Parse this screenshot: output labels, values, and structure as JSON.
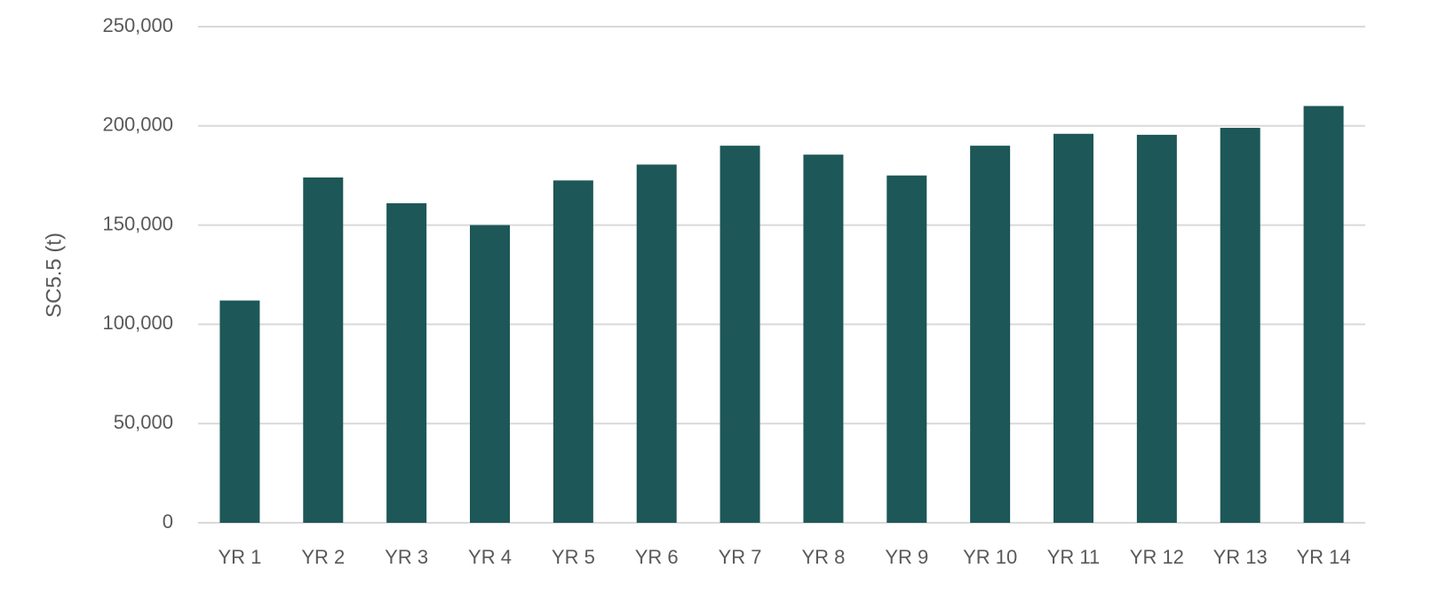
{
  "chart_data": {
    "type": "bar",
    "y_label": "SC5.5 (t)",
    "categories": [
      "YR 1",
      "YR 2",
      "YR 3",
      "YR 4",
      "YR 5",
      "YR 6",
      "YR 7",
      "YR 8",
      "YR 9",
      "YR 10",
      "YR 11",
      "YR 12",
      "YR 13",
      "YR 14"
    ],
    "values": [
      112000,
      174000,
      161000,
      150000,
      172500,
      180500,
      190000,
      185500,
      175000,
      190000,
      196000,
      195500,
      199000,
      210000
    ],
    "color": "#1d5757",
    "ylim": [
      0,
      250000
    ],
    "yticks": [
      0,
      {
        "value": 50000,
        "label": "50,000"
      },
      {
        "value": 100000,
        "label": "100,000"
      },
      {
        "value": 150000,
        "label": "150,000"
      },
      {
        "value": 200000,
        "label": "200,000"
      },
      {
        "value": 250000,
        "label": "250,000"
      }
    ],
    "grid": true
  }
}
